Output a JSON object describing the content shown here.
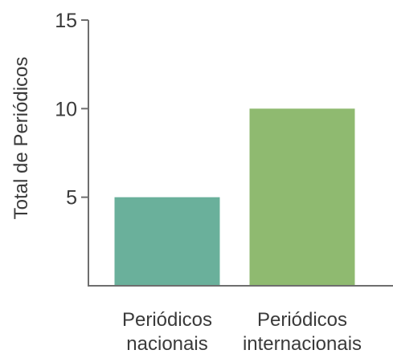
{
  "chart_data": {
    "type": "bar",
    "categories": [
      [
        "Periódicos",
        "nacionais"
      ],
      [
        "Periódicos",
        "internacionais"
      ]
    ],
    "values": [
      5,
      10
    ],
    "bar_colors": [
      "#6ab09b",
      "#8fba70"
    ],
    "title": "",
    "xlabel": "",
    "ylabel": "Total de Periódicos",
    "ylim": [
      0,
      15
    ],
    "yticks": [
      5,
      10,
      15
    ],
    "grid": false,
    "legend": "none"
  },
  "colors": {
    "axis": "#6e6e6e",
    "text": "#3a3a3a",
    "background": "#ffffff"
  }
}
